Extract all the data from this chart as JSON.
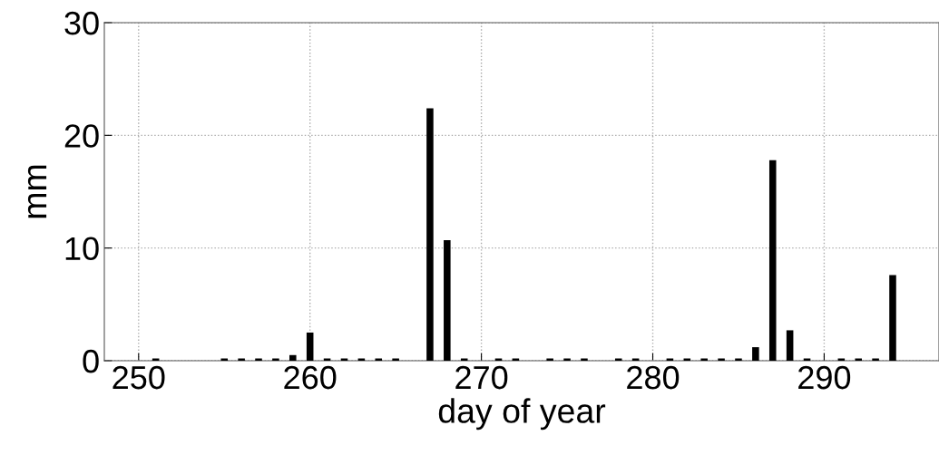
{
  "chart_data": {
    "type": "bar",
    "xlabel": "day of year",
    "ylabel": "mm",
    "x": [
      251,
      255,
      256,
      257,
      258,
      259,
      260,
      261,
      262,
      263,
      264,
      265,
      267,
      268,
      269,
      271,
      272,
      274,
      275,
      276,
      278,
      279,
      281,
      282,
      283,
      284,
      285,
      286,
      287,
      288,
      289,
      291,
      292,
      293,
      294
    ],
    "values": [
      0.2,
      0.2,
      0.2,
      0.2,
      0.2,
      0.5,
      2.5,
      0.2,
      0.2,
      0.2,
      0.2,
      0.2,
      22.4,
      10.7,
      0.2,
      0.2,
      0.2,
      0.2,
      0.2,
      0.2,
      0.2,
      0.2,
      0.2,
      0.2,
      0.2,
      0.2,
      0.2,
      1.2,
      17.8,
      2.7,
      0.2,
      0.2,
      0.2,
      0.2,
      7.6
    ],
    "color": "#000000",
    "xlim": [
      248,
      296.7
    ],
    "ylim": [
      0,
      30
    ],
    "xticks": [
      250,
      260,
      270,
      280,
      290
    ],
    "yticks": [
      0,
      10,
      20,
      30
    ],
    "grid": true
  }
}
